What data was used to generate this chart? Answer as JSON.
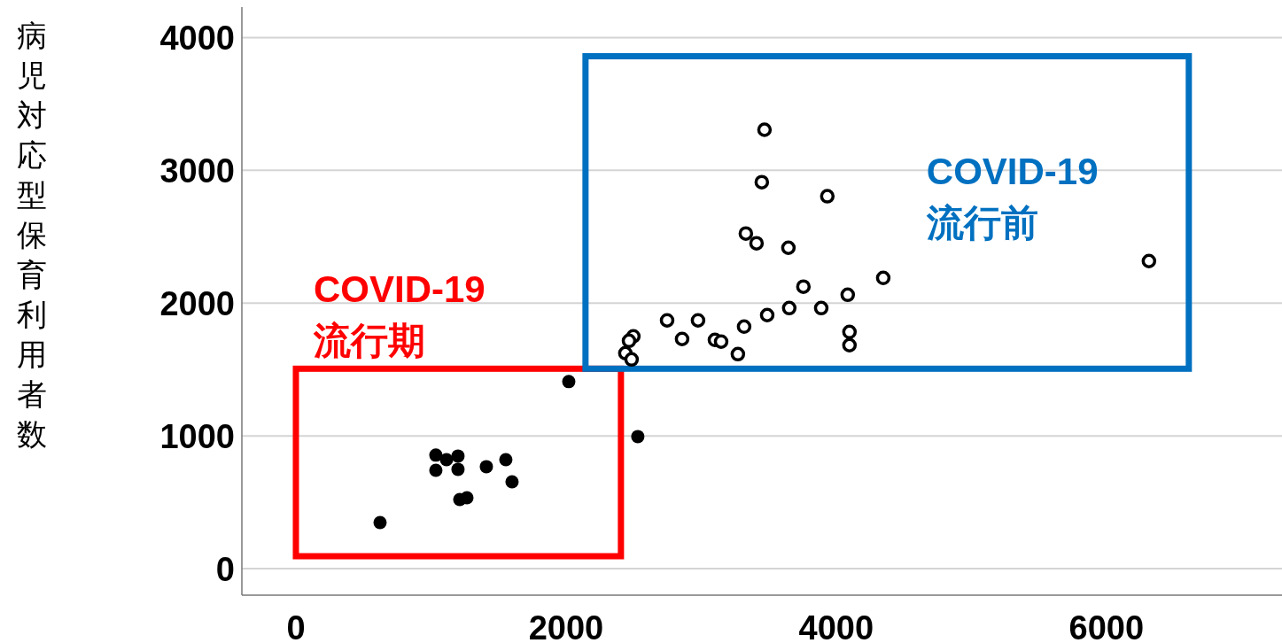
{
  "chart_data": {
    "type": "scatter",
    "ylabel": "病児対応型保育利用者数",
    "xlim": [
      -400,
      7300
    ],
    "ylim": [
      -200,
      4230
    ],
    "xticks": [
      0,
      2000,
      4000,
      6000
    ],
    "yticks": [
      0,
      1000,
      2000,
      3000,
      4000
    ],
    "grid": "y",
    "marker": "circle",
    "annotations": [
      "COVID-19\n流行期",
      "COVID-19\n流行前"
    ],
    "series": [
      {
        "color": "#000000",
        "x": [
          2020,
          2531,
          1036,
          1115,
          1200,
          1036,
          1200,
          1410,
          1554,
          1600,
          1213,
          1266,
          623
        ],
        "values": [
          1409,
          995,
          855,
          821,
          848,
          741,
          748,
          768,
          821,
          654,
          521,
          534,
          347
        ]
      },
      {
        "color": "#000000",
        "x": [
          3469,
          3449,
          3934,
          3331,
          3410,
          3646,
          4348,
          3757,
          4085,
          3652,
          3889,
          3489,
          3318,
          2748,
          2977,
          2859,
          3102,
          3148,
          2498,
          2466,
          4098,
          4098,
          3272,
          2439,
          2485,
          6315
        ],
        "values": [
          3306,
          2911,
          2805,
          2524,
          2451,
          2417,
          2190,
          2124,
          2063,
          1963,
          1963,
          1910,
          1823,
          1870,
          1870,
          1730,
          1723,
          1710,
          1750,
          1716,
          1783,
          1683,
          1616,
          1623,
          1576,
          2317
        ]
      }
    ]
  }
}
